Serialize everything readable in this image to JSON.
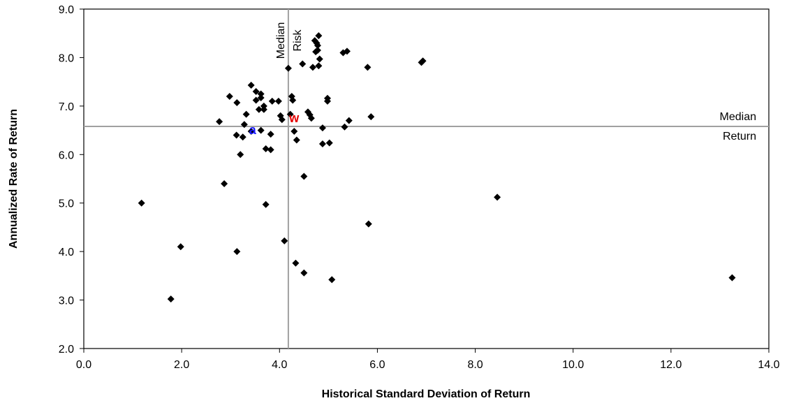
{
  "chart_data": {
    "type": "scatter",
    "title": "",
    "xlabel": "Historical Standard Deviation of Return",
    "ylabel": "Annualized Rate of Return",
    "xlim": [
      0,
      14
    ],
    "ylim": [
      2,
      9
    ],
    "x_ticks": [
      "0.0",
      "2.0",
      "4.0",
      "6.0",
      "8.0",
      "10.0",
      "12.0",
      "14.0"
    ],
    "y_ticks": [
      "2.0",
      "3.0",
      "4.0",
      "5.0",
      "6.0",
      "7.0",
      "8.0",
      "9.0"
    ],
    "grid": false,
    "legend": "none",
    "median_risk": {
      "x": 4.18,
      "label_line1": "Median",
      "label_line2": "Risk"
    },
    "median_return": {
      "y": 6.58,
      "label_line1": "Median",
      "label_line2": "Return"
    },
    "highlights": [
      {
        "label": "a",
        "x": 3.45,
        "y": 6.52,
        "color": "#1a1aff"
      },
      {
        "label": "w",
        "x": 4.3,
        "y": 6.77,
        "color": "#e60000"
      }
    ],
    "points": [
      [
        1.18,
        5.0
      ],
      [
        1.78,
        3.02
      ],
      [
        1.98,
        4.1
      ],
      [
        2.77,
        6.68
      ],
      [
        2.87,
        5.4
      ],
      [
        2.98,
        7.2
      ],
      [
        3.12,
        6.4
      ],
      [
        3.13,
        4.0
      ],
      [
        3.13,
        7.07
      ],
      [
        3.2,
        6.0
      ],
      [
        3.25,
        6.36
      ],
      [
        3.28,
        6.62
      ],
      [
        3.32,
        6.83
      ],
      [
        3.42,
        6.48
      ],
      [
        3.42,
        7.43
      ],
      [
        3.52,
        7.3
      ],
      [
        3.52,
        7.12
      ],
      [
        3.58,
        6.93
      ],
      [
        3.62,
        7.25
      ],
      [
        3.62,
        7.17
      ],
      [
        3.62,
        6.5
      ],
      [
        3.68,
        7.0
      ],
      [
        3.68,
        6.93
      ],
      [
        3.72,
        6.12
      ],
      [
        3.72,
        4.97
      ],
      [
        3.82,
        6.42
      ],
      [
        3.82,
        6.1
      ],
      [
        3.85,
        7.1
      ],
      [
        3.98,
        7.1
      ],
      [
        4.02,
        6.8
      ],
      [
        4.05,
        6.72
      ],
      [
        4.1,
        4.22
      ],
      [
        4.18,
        7.78
      ],
      [
        4.22,
        6.83
      ],
      [
        4.25,
        7.2
      ],
      [
        4.27,
        7.12
      ],
      [
        4.3,
        6.48
      ],
      [
        4.33,
        3.76
      ],
      [
        4.35,
        6.3
      ],
      [
        4.47,
        7.87
      ],
      [
        4.5,
        5.55
      ],
      [
        4.5,
        3.56
      ],
      [
        4.58,
        6.88
      ],
      [
        4.62,
        6.82
      ],
      [
        4.65,
        6.75
      ],
      [
        4.68,
        7.8
      ],
      [
        4.72,
        8.35
      ],
      [
        4.74,
        8.12
      ],
      [
        4.76,
        8.3
      ],
      [
        4.78,
        8.25
      ],
      [
        4.78,
        8.15
      ],
      [
        4.8,
        8.45
      ],
      [
        4.8,
        7.83
      ],
      [
        4.82,
        7.97
      ],
      [
        4.88,
        6.55
      ],
      [
        4.88,
        6.22
      ],
      [
        4.98,
        7.16
      ],
      [
        4.98,
        7.1
      ],
      [
        5.02,
        6.24
      ],
      [
        5.07,
        3.42
      ],
      [
        5.3,
        8.1
      ],
      [
        5.33,
        6.57
      ],
      [
        5.38,
        8.13
      ],
      [
        5.42,
        6.7
      ],
      [
        5.8,
        7.8
      ],
      [
        5.82,
        4.57
      ],
      [
        5.87,
        6.78
      ],
      [
        6.9,
        7.9
      ],
      [
        6.93,
        7.93
      ],
      [
        8.45,
        5.12
      ],
      [
        13.25,
        3.46
      ]
    ]
  }
}
